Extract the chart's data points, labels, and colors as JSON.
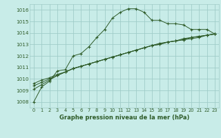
{
  "background_color": "#c8ece8",
  "grid_color": "#a0ccc8",
  "line_color": "#2d5a27",
  "xlabel": "Graphe pression niveau de la mer (hPa)",
  "ylim": [
    1007.5,
    1016.5
  ],
  "xlim": [
    -0.5,
    23.5
  ],
  "yticks": [
    1008,
    1009,
    1010,
    1011,
    1012,
    1013,
    1014,
    1015,
    1016
  ],
  "xticks": [
    0,
    1,
    2,
    3,
    4,
    5,
    6,
    7,
    8,
    9,
    10,
    11,
    12,
    13,
    14,
    15,
    16,
    17,
    18,
    19,
    20,
    21,
    22,
    23
  ],
  "series1": [
    1008.0,
    1009.3,
    1009.8,
    1010.7,
    1010.8,
    1012.0,
    1012.2,
    1012.8,
    1013.6,
    1014.3,
    1015.3,
    1015.8,
    1016.1,
    1016.1,
    1015.8,
    1015.1,
    1015.1,
    1014.8,
    1014.8,
    1014.7,
    1014.3,
    1014.3,
    1014.3,
    1013.9
  ],
  "series2": [
    1009.1,
    1009.5,
    1009.9,
    1010.3,
    1010.6,
    1010.9,
    1011.1,
    1011.3,
    1011.5,
    1011.7,
    1011.9,
    1012.1,
    1012.3,
    1012.5,
    1012.7,
    1012.9,
    1013.1,
    1013.2,
    1013.3,
    1013.5,
    1013.6,
    1013.7,
    1013.8,
    1013.9
  ],
  "series3": [
    1009.4,
    1009.7,
    1010.0,
    1010.3,
    1010.6,
    1010.9,
    1011.1,
    1011.3,
    1011.5,
    1011.7,
    1011.9,
    1012.1,
    1012.3,
    1012.5,
    1012.7,
    1012.9,
    1013.0,
    1013.2,
    1013.3,
    1013.4,
    1013.6,
    1013.7,
    1013.8,
    1013.9
  ],
  "series4": [
    1009.6,
    1009.9,
    1010.1,
    1010.4,
    1010.6,
    1010.9,
    1011.1,
    1011.3,
    1011.5,
    1011.7,
    1011.9,
    1012.1,
    1012.3,
    1012.5,
    1012.7,
    1012.9,
    1013.0,
    1013.2,
    1013.3,
    1013.4,
    1013.5,
    1013.6,
    1013.8,
    1013.9
  ]
}
